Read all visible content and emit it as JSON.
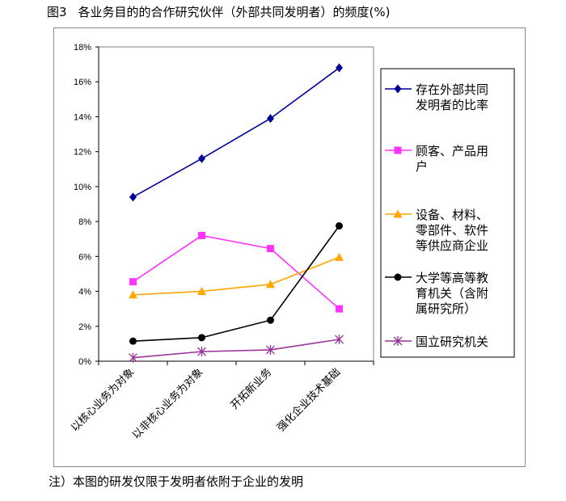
{
  "caption": {
    "figure_label": "图3",
    "title": "各业务目的的合作研究伙伴（外部共同发明者）的频度(%)"
  },
  "note": "注）本图的研发仅限于发明者依附于企业的发明",
  "chart_data": {
    "type": "line",
    "title": "",
    "xlabel": "",
    "ylabel": "",
    "y_unit": "%",
    "ylim": [
      0,
      18
    ],
    "y_ticks": [
      "0%",
      "2%",
      "4%",
      "6%",
      "8%",
      "10%",
      "12%",
      "14%",
      "16%",
      "18%"
    ],
    "categories": [
      "以核心业务为对象",
      "以非核心业务为对象",
      "开拓新业务",
      "强化企业技术基础"
    ],
    "grid": false,
    "legend_position": "right",
    "series": [
      {
        "name": "存在外部共同发明者的比率",
        "legend_lines": [
          "存在外部共同",
          "发明者的比率"
        ],
        "values": [
          9.4,
          11.6,
          13.9,
          16.8
        ],
        "color": "#000099",
        "marker": "diamond"
      },
      {
        "name": "顾客、产品用户",
        "legend_lines": [
          "顾客、产品用",
          "户"
        ],
        "values": [
          4.55,
          7.2,
          6.45,
          3.0
        ],
        "color": "#ff33ff",
        "marker": "square"
      },
      {
        "name": "设备、材料、零部件、软件等供应商企业",
        "legend_lines": [
          "设备、材料、",
          "零部件、软件",
          "等供应商企业"
        ],
        "values": [
          3.8,
          4.0,
          4.4,
          5.95
        ],
        "color": "#ffa500",
        "marker": "triangle"
      },
      {
        "name": "大学等高等教育机关（含附属研究所）",
        "legend_lines": [
          "大学等高等教",
          "育机关（含附",
          "属研究所）"
        ],
        "values": [
          1.15,
          1.35,
          2.35,
          7.75
        ],
        "color": "#000000",
        "marker": "circle"
      },
      {
        "name": "国立研究机关",
        "legend_lines": [
          "国立研究机关"
        ],
        "values": [
          0.2,
          0.55,
          0.65,
          1.25
        ],
        "color": "#993399",
        "marker": "star"
      }
    ]
  }
}
